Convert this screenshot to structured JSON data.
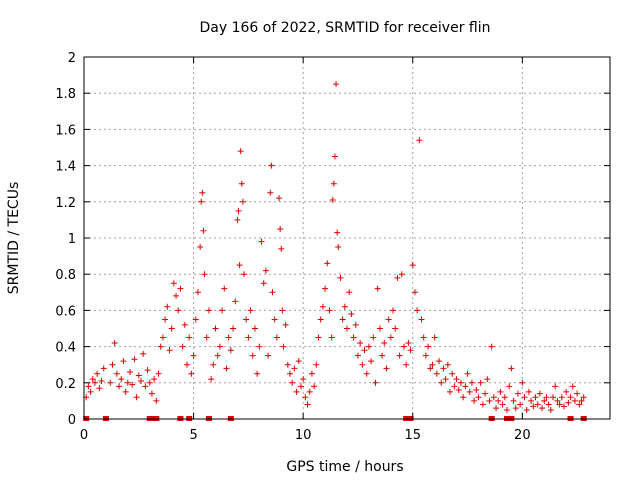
{
  "chart_data": {
    "type": "scatter",
    "title": "Day 166 of 2022, SRMTID for receiver flin",
    "xlabel": "GPS time / hours",
    "ylabel": "SRMTID / TECUs",
    "xlim": [
      0,
      24
    ],
    "ylim": [
      0,
      2
    ],
    "xticks": [
      "0",
      "5",
      "10",
      "15",
      "20"
    ],
    "yticks": [
      "0",
      "0.2",
      "0.4",
      "0.6",
      "0.8",
      "1",
      "1.2",
      "1.4",
      "1.6",
      "1.8",
      "2"
    ],
    "grid": true,
    "marker": "+",
    "color": "#e00000",
    "series": [
      {
        "name": "SRMTID",
        "points": [
          [
            0.1,
            0.12
          ],
          [
            0.2,
            0.18
          ],
          [
            0.3,
            0.15
          ],
          [
            0.4,
            0.22
          ],
          [
            0.5,
            0.2
          ],
          [
            0.6,
            0.25
          ],
          [
            0.7,
            0.17
          ],
          [
            0.8,
            0.21
          ],
          [
            0.9,
            0.28
          ],
          [
            1.2,
            0.2
          ],
          [
            1.3,
            0.3
          ],
          [
            1.4,
            0.42
          ],
          [
            1.5,
            0.25
          ],
          [
            1.6,
            0.18
          ],
          [
            1.7,
            0.22
          ],
          [
            1.8,
            0.32
          ],
          [
            1.9,
            0.15
          ],
          [
            2.0,
            0.2
          ],
          [
            2.1,
            0.26
          ],
          [
            2.2,
            0.19
          ],
          [
            2.3,
            0.33
          ],
          [
            2.4,
            0.12
          ],
          [
            2.5,
            0.24
          ],
          [
            2.6,
            0.21
          ],
          [
            2.7,
            0.36
          ],
          [
            2.8,
            0.18
          ],
          [
            2.9,
            0.27
          ],
          [
            3.0,
            0.2
          ],
          [
            3.1,
            0.14
          ],
          [
            3.2,
            0.22
          ],
          [
            3.3,
            0.1
          ],
          [
            3.4,
            0.25
          ],
          [
            3.5,
            0.4
          ],
          [
            3.6,
            0.45
          ],
          [
            3.7,
            0.55
          ],
          [
            3.8,
            0.62
          ],
          [
            3.9,
            0.38
          ],
          [
            4.0,
            0.5
          ],
          [
            4.1,
            0.75
          ],
          [
            4.2,
            0.68
          ],
          [
            4.3,
            0.6
          ],
          [
            4.4,
            0.72
          ],
          [
            4.5,
            0.4
          ],
          [
            4.6,
            0.52
          ],
          [
            4.7,
            0.3
          ],
          [
            4.8,
            0.45
          ],
          [
            4.9,
            0.25
          ],
          [
            5.0,
            0.35
          ],
          [
            5.1,
            0.55
          ],
          [
            5.2,
            0.7
          ],
          [
            5.3,
            0.95
          ],
          [
            5.35,
            1.2
          ],
          [
            5.4,
            1.25
          ],
          [
            5.45,
            1.04
          ],
          [
            5.5,
            0.8
          ],
          [
            5.6,
            0.45
          ],
          [
            5.7,
            0.6
          ],
          [
            5.8,
            0.22
          ],
          [
            5.9,
            0.3
          ],
          [
            6.0,
            0.5
          ],
          [
            6.1,
            0.35
          ],
          [
            6.2,
            0.4
          ],
          [
            6.3,
            0.6
          ],
          [
            6.4,
            0.72
          ],
          [
            6.5,
            0.28
          ],
          [
            6.6,
            0.45
          ],
          [
            6.7,
            0.38
          ],
          [
            6.8,
            0.5
          ],
          [
            6.9,
            0.65
          ],
          [
            7.0,
            1.1
          ],
          [
            7.05,
            1.15
          ],
          [
            7.1,
            0.85
          ],
          [
            7.15,
            1.48
          ],
          [
            7.2,
            1.3
          ],
          [
            7.25,
            1.2
          ],
          [
            7.3,
            0.8
          ],
          [
            7.4,
            0.55
          ],
          [
            7.5,
            0.45
          ],
          [
            7.6,
            0.6
          ],
          [
            7.7,
            0.35
          ],
          [
            7.8,
            0.5
          ],
          [
            7.9,
            0.25
          ],
          [
            8.0,
            0.4
          ],
          [
            8.1,
            0.98
          ],
          [
            8.2,
            0.75
          ],
          [
            8.3,
            0.82
          ],
          [
            8.4,
            0.35
          ],
          [
            8.5,
            1.25
          ],
          [
            8.55,
            1.4
          ],
          [
            8.6,
            0.7
          ],
          [
            8.7,
            0.55
          ],
          [
            8.8,
            0.45
          ],
          [
            8.9,
            1.22
          ],
          [
            8.95,
            1.05
          ],
          [
            9.0,
            0.94
          ],
          [
            9.05,
            0.6
          ],
          [
            9.1,
            0.4
          ],
          [
            9.2,
            0.52
          ],
          [
            9.3,
            0.3
          ],
          [
            9.4,
            0.25
          ],
          [
            9.5,
            0.2
          ],
          [
            9.6,
            0.28
          ],
          [
            9.7,
            0.15
          ],
          [
            9.8,
            0.32
          ],
          [
            9.9,
            0.18
          ],
          [
            10.0,
            0.22
          ],
          [
            10.1,
            0.12
          ],
          [
            10.2,
            0.08
          ],
          [
            10.3,
            0.15
          ],
          [
            10.4,
            0.25
          ],
          [
            10.5,
            0.18
          ],
          [
            10.6,
            0.3
          ],
          [
            10.7,
            0.45
          ],
          [
            10.8,
            0.55
          ],
          [
            10.9,
            0.62
          ],
          [
            11.0,
            0.72
          ],
          [
            11.1,
            0.86
          ],
          [
            11.2,
            0.6
          ],
          [
            11.3,
            0.45
          ],
          [
            11.35,
            1.21
          ],
          [
            11.4,
            1.3
          ],
          [
            11.45,
            1.45
          ],
          [
            11.5,
            1.85
          ],
          [
            11.55,
            1.03
          ],
          [
            11.6,
            0.95
          ],
          [
            11.7,
            0.78
          ],
          [
            11.8,
            0.55
          ],
          [
            11.9,
            0.62
          ],
          [
            12.0,
            0.5
          ],
          [
            12.1,
            0.7
          ],
          [
            12.2,
            0.58
          ],
          [
            12.3,
            0.45
          ],
          [
            12.4,
            0.52
          ],
          [
            12.5,
            0.35
          ],
          [
            12.6,
            0.42
          ],
          [
            12.7,
            0.3
          ],
          [
            12.8,
            0.38
          ],
          [
            12.9,
            0.25
          ],
          [
            13.0,
            0.4
          ],
          [
            13.1,
            0.32
          ],
          [
            13.2,
            0.45
          ],
          [
            13.3,
            0.2
          ],
          [
            13.4,
            0.72
          ],
          [
            13.5,
            0.5
          ],
          [
            13.6,
            0.35
          ],
          [
            13.7,
            0.42
          ],
          [
            13.8,
            0.28
          ],
          [
            13.9,
            0.55
          ],
          [
            14.0,
            0.45
          ],
          [
            14.1,
            0.6
          ],
          [
            14.2,
            0.5
          ],
          [
            14.3,
            0.78
          ],
          [
            14.4,
            0.35
          ],
          [
            14.5,
            0.8
          ],
          [
            14.6,
            0.4
          ],
          [
            14.7,
            0.3
          ],
          [
            14.8,
            0.42
          ],
          [
            14.9,
            0.38
          ],
          [
            15.0,
            0.85
          ],
          [
            15.1,
            0.7
          ],
          [
            15.2,
            0.6
          ],
          [
            15.3,
            1.54
          ],
          [
            15.4,
            0.55
          ],
          [
            15.5,
            0.45
          ],
          [
            15.6,
            0.35
          ],
          [
            15.7,
            0.4
          ],
          [
            15.8,
            0.28
          ],
          [
            15.9,
            0.3
          ],
          [
            16.0,
            0.45
          ],
          [
            16.1,
            0.25
          ],
          [
            16.2,
            0.32
          ],
          [
            16.3,
            0.2
          ],
          [
            16.4,
            0.28
          ],
          [
            16.5,
            0.22
          ],
          [
            16.6,
            0.3
          ],
          [
            16.7,
            0.15
          ],
          [
            16.8,
            0.25
          ],
          [
            16.9,
            0.18
          ],
          [
            17.0,
            0.22
          ],
          [
            17.1,
            0.16
          ],
          [
            17.2,
            0.2
          ],
          [
            17.3,
            0.12
          ],
          [
            17.4,
            0.18
          ],
          [
            17.5,
            0.25
          ],
          [
            17.6,
            0.15
          ],
          [
            17.7,
            0.2
          ],
          [
            17.8,
            0.1
          ],
          [
            17.9,
            0.16
          ],
          [
            18.0,
            0.12
          ],
          [
            18.1,
            0.2
          ],
          [
            18.2,
            0.08
          ],
          [
            18.3,
            0.14
          ],
          [
            18.4,
            0.22
          ],
          [
            18.5,
            0.1
          ],
          [
            18.6,
            0.4
          ],
          [
            18.7,
            0.12
          ],
          [
            18.8,
            0.06
          ],
          [
            18.9,
            0.1
          ],
          [
            19.0,
            0.15
          ],
          [
            19.1,
            0.08
          ],
          [
            19.2,
            0.12
          ],
          [
            19.3,
            0.05
          ],
          [
            19.4,
            0.18
          ],
          [
            19.5,
            0.28
          ],
          [
            19.6,
            0.1
          ],
          [
            19.7,
            0.06
          ],
          [
            19.8,
            0.14
          ],
          [
            19.9,
            0.08
          ],
          [
            20.0,
            0.2
          ],
          [
            20.1,
            0.12
          ],
          [
            20.2,
            0.05
          ],
          [
            20.3,
            0.15
          ],
          [
            20.4,
            0.1
          ],
          [
            20.5,
            0.07
          ],
          [
            20.6,
            0.12
          ],
          [
            20.7,
            0.08
          ],
          [
            20.8,
            0.14
          ],
          [
            20.9,
            0.06
          ],
          [
            21.0,
            0.1
          ],
          [
            21.1,
            0.12
          ],
          [
            21.2,
            0.08
          ],
          [
            21.3,
            0.05
          ],
          [
            21.4,
            0.12
          ],
          [
            21.5,
            0.18
          ],
          [
            21.6,
            0.1
          ],
          [
            21.7,
            0.08
          ],
          [
            21.8,
            0.12
          ],
          [
            21.9,
            0.07
          ],
          [
            22.0,
            0.15
          ],
          [
            22.1,
            0.09
          ],
          [
            22.2,
            0.12
          ],
          [
            22.3,
            0.18
          ],
          [
            22.4,
            0.1
          ],
          [
            22.5,
            0.14
          ],
          [
            22.6,
            0.08
          ],
          [
            22.7,
            0.1
          ],
          [
            22.8,
            0.12
          ]
        ]
      }
    ],
    "zero_points": [
      0.1,
      1.0,
      3.0,
      3.1,
      3.2,
      3.3,
      4.4,
      4.8,
      5.7,
      6.7,
      14.7,
      14.8,
      14.9,
      18.6,
      19.3,
      19.4,
      19.5,
      22.2,
      22.8
    ]
  }
}
